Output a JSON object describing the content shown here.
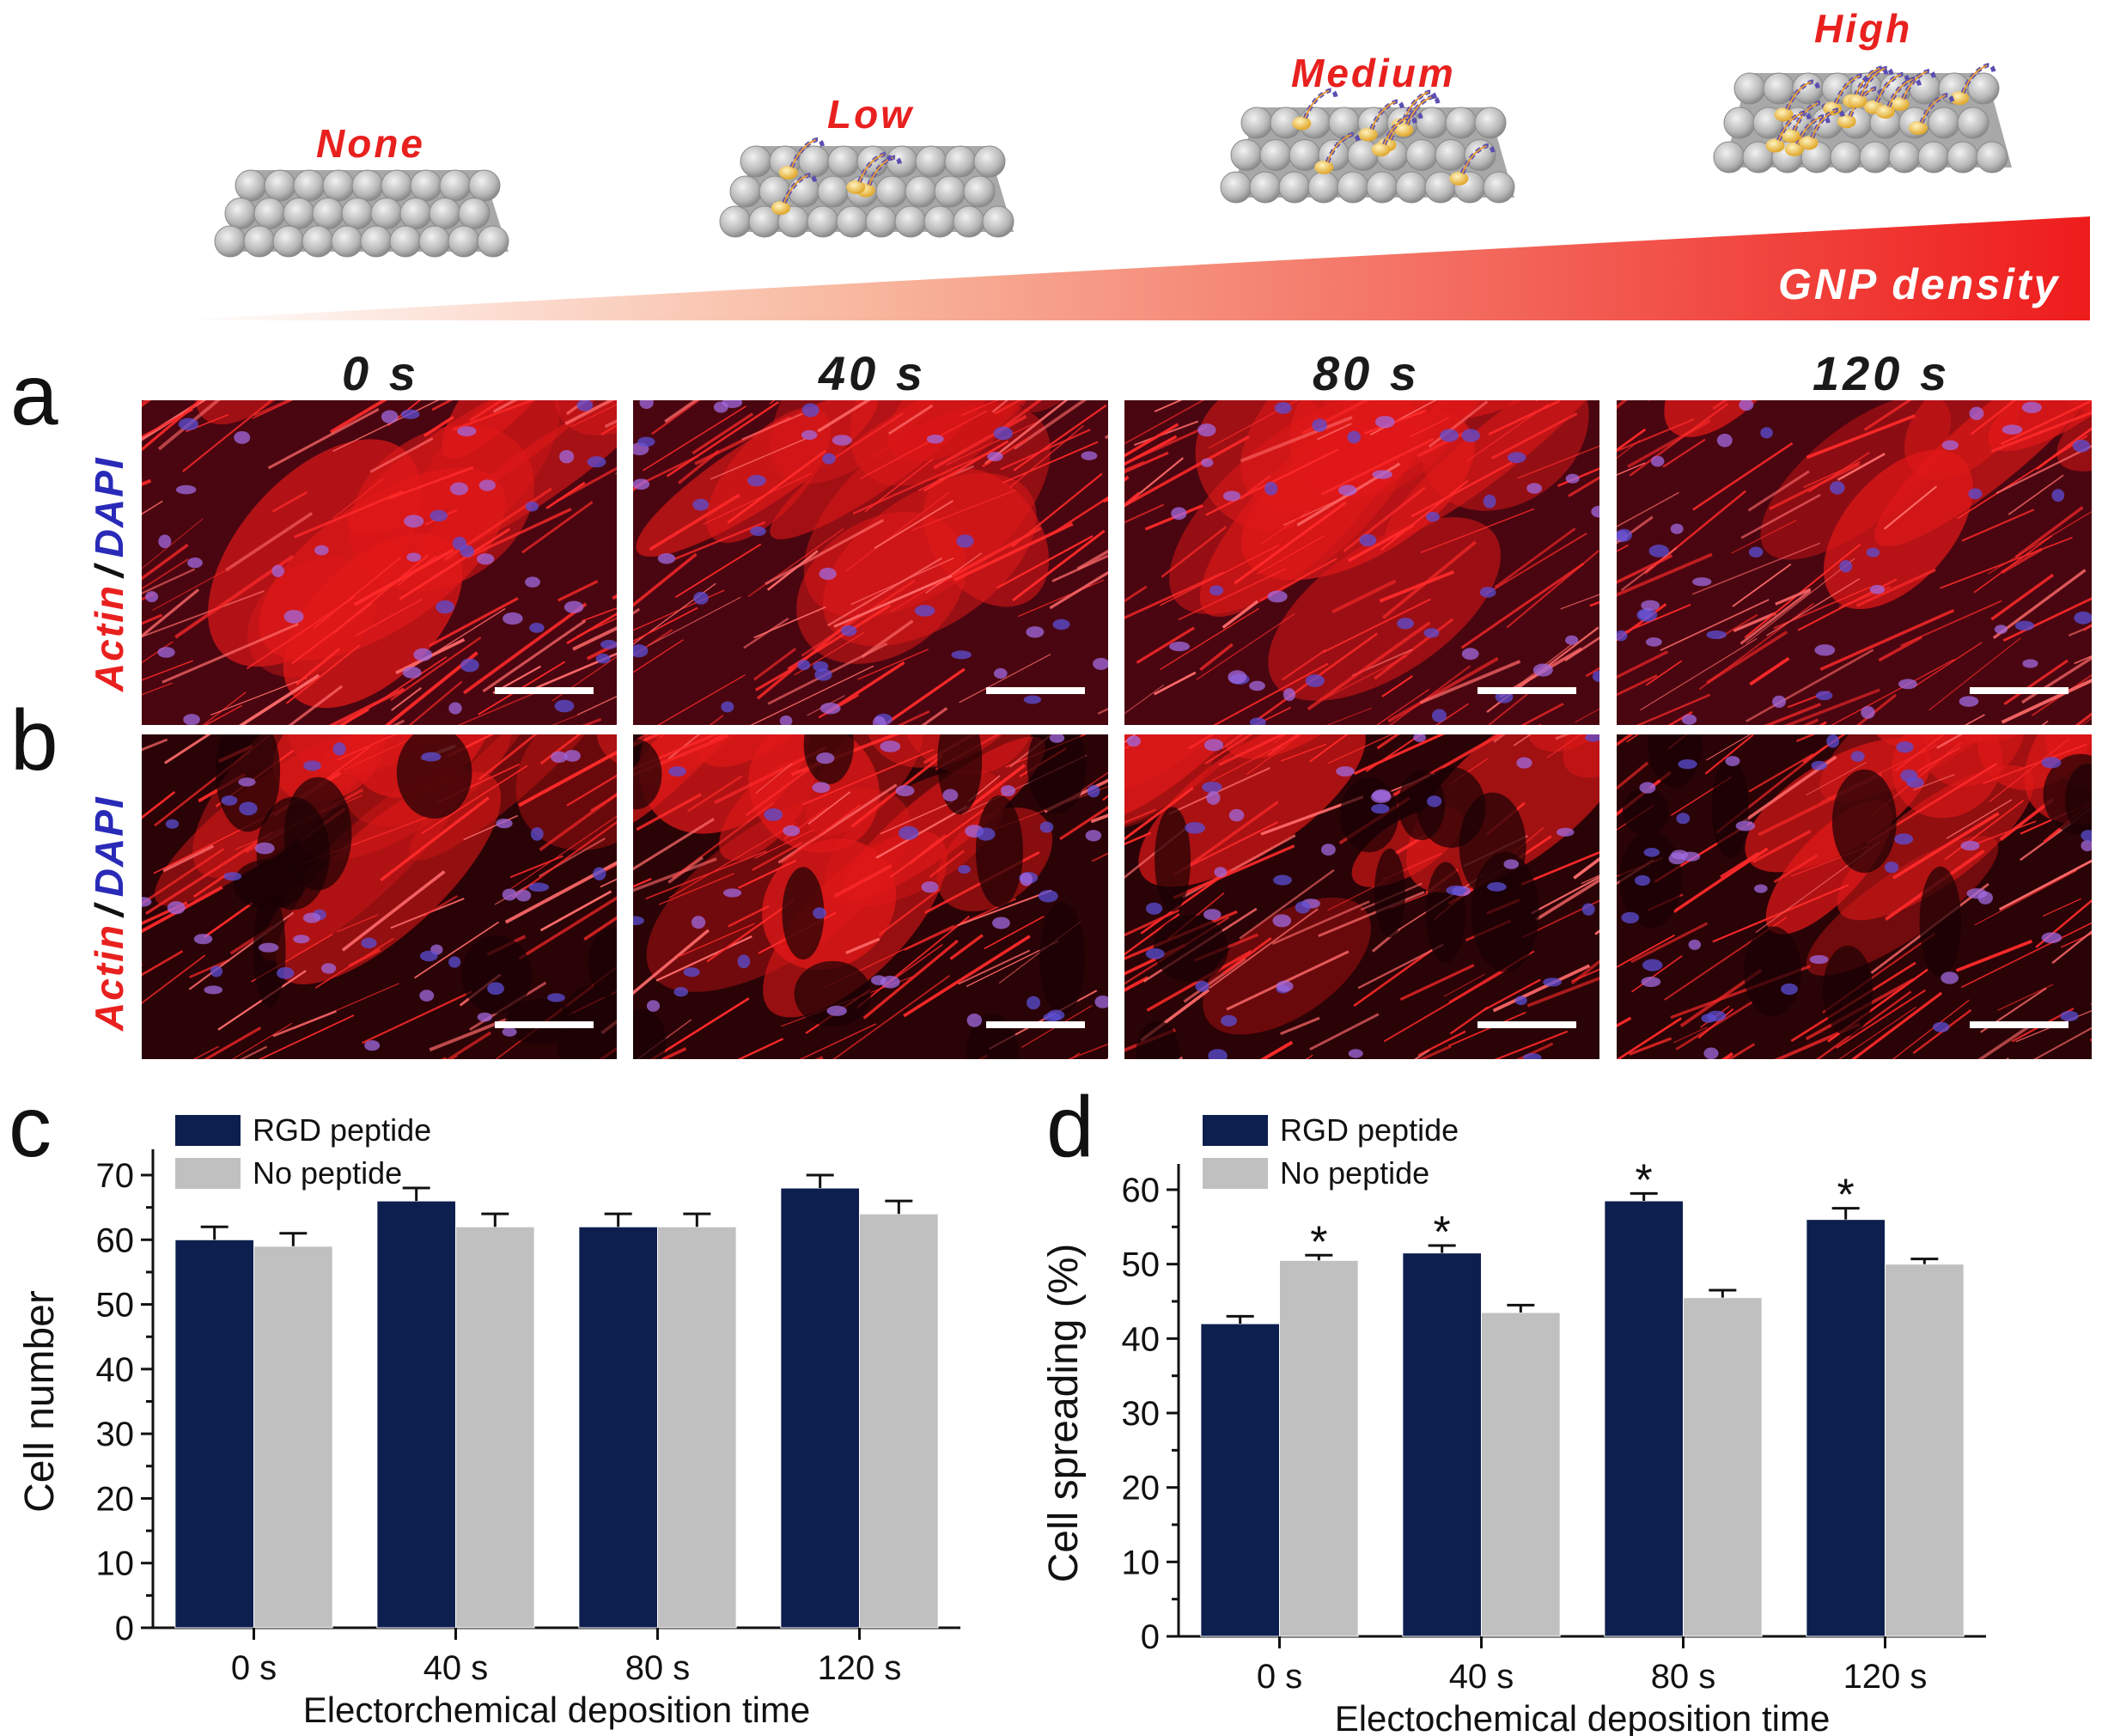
{
  "schematic": {
    "density_labels": [
      "None",
      "Low",
      "Medium",
      "High"
    ],
    "gradient_label": "GNP density",
    "colors": {
      "label_red": "#e8211f",
      "gradient_start": "#fde3d8",
      "gradient_end": "#ee1c1c"
    }
  },
  "micrographs": {
    "time_labels": [
      "0 s",
      "40 s",
      "80 s",
      "120 s"
    ],
    "rows": [
      {
        "letter": "a",
        "stain_actin": "Actin",
        "stain_sep": "/",
        "stain_dapi": "DAPI"
      },
      {
        "letter": "b",
        "stain_actin": "Actin",
        "stain_sep": "/",
        "stain_dapi": "DAPI"
      }
    ]
  },
  "chart_data": [
    {
      "panel": "c",
      "type": "bar",
      "categories": [
        "0 s",
        "40 s",
        "80 s",
        "120 s"
      ],
      "series": [
        {
          "name": "RGD peptide",
          "color": "#0d1f4f",
          "values": [
            60,
            66,
            62,
            68
          ],
          "errors": [
            2,
            2,
            2,
            2
          ]
        },
        {
          "name": "No peptide",
          "color": "#c0c0c0",
          "values": [
            59,
            62,
            62,
            64
          ],
          "errors": [
            2,
            2,
            2,
            2
          ]
        }
      ],
      "significance": [
        [
          false,
          false,
          false,
          false
        ],
        [
          false,
          false,
          false,
          false
        ]
      ],
      "xlabel": "Electorchemical deposition time",
      "ylabel": "Cell number",
      "ylim": [
        0,
        70
      ],
      "yticks": [
        0,
        10,
        20,
        30,
        40,
        50,
        60,
        70
      ],
      "legend": "top-left"
    },
    {
      "panel": "d",
      "type": "bar",
      "categories": [
        "0 s",
        "40 s",
        "80 s",
        "120 s"
      ],
      "series": [
        {
          "name": "RGD peptide",
          "color": "#0d1f4f",
          "values": [
            42,
            51.5,
            58.5,
            56
          ],
          "errors": [
            1,
            1,
            1,
            1.5
          ]
        },
        {
          "name": "No peptide",
          "color": "#c0c0c0",
          "values": [
            50.5,
            43.5,
            45.5,
            50
          ],
          "errors": [
            0.7,
            1,
            1,
            0.7
          ]
        }
      ],
      "significance": [
        [
          false,
          true,
          true,
          true
        ],
        [
          true,
          false,
          false,
          false
        ]
      ],
      "significance_mark": "*",
      "xlabel": "Electochemical deposition time",
      "ylabel": "Cell spreading (%)",
      "ylim": [
        0,
        60
      ],
      "yticks": [
        0,
        10,
        20,
        30,
        40,
        50,
        60
      ],
      "legend": "top-left"
    }
  ]
}
